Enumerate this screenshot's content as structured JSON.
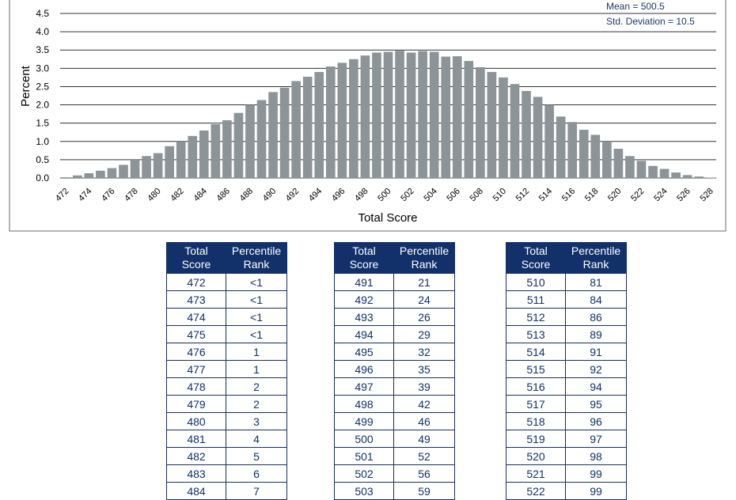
{
  "chart_data": {
    "type": "bar",
    "ylabel": "Percent",
    "xlabel": "Total Score",
    "ylim": [
      0,
      4.5
    ],
    "yticks": [
      "0.0",
      "0.5",
      "1.0",
      "1.5",
      "2.0",
      "2.5",
      "3.0",
      "3.5",
      "4.0",
      "4.5"
    ],
    "xticks": [
      "472",
      "474",
      "476",
      "478",
      "480",
      "482",
      "484",
      "486",
      "488",
      "490",
      "492",
      "494",
      "496",
      "498",
      "500",
      "502",
      "504",
      "506",
      "508",
      "510",
      "512",
      "514",
      "516",
      "518",
      "520",
      "522",
      "524",
      "526",
      "528"
    ],
    "categories": [
      472,
      473,
      474,
      475,
      476,
      477,
      478,
      479,
      480,
      481,
      482,
      483,
      484,
      485,
      486,
      487,
      488,
      489,
      490,
      491,
      492,
      493,
      494,
      495,
      496,
      497,
      498,
      499,
      500,
      501,
      502,
      503,
      504,
      505,
      506,
      507,
      508,
      509,
      510,
      511,
      512,
      513,
      514,
      515,
      516,
      517,
      518,
      519,
      520,
      521,
      522,
      523,
      524,
      525,
      526,
      527,
      528
    ],
    "values": [
      0.02,
      0.07,
      0.13,
      0.2,
      0.27,
      0.36,
      0.5,
      0.6,
      0.68,
      0.87,
      1.0,
      1.15,
      1.3,
      1.47,
      1.58,
      1.78,
      2.0,
      2.13,
      2.35,
      2.47,
      2.65,
      2.77,
      2.9,
      3.05,
      3.15,
      3.25,
      3.35,
      3.43,
      3.45,
      3.48,
      3.43,
      3.47,
      3.45,
      3.32,
      3.33,
      3.2,
      3.03,
      2.9,
      2.75,
      2.57,
      2.38,
      2.22,
      2.0,
      1.68,
      1.53,
      1.32,
      1.18,
      1.0,
      0.8,
      0.6,
      0.47,
      0.33,
      0.25,
      0.15,
      0.08,
      0.04,
      0.01
    ],
    "bar_color": "#8c9497",
    "grid": true,
    "stats": {
      "mean": "Mean = 500.5",
      "sd": "Std. Deviation = 10.5"
    }
  },
  "tables": [
    {
      "header": [
        "Total Score",
        "Percentile Rank"
      ],
      "rows": [
        [
          "472",
          "<1"
        ],
        [
          "473",
          "<1"
        ],
        [
          "474",
          "<1"
        ],
        [
          "475",
          "<1"
        ],
        [
          "476",
          "1"
        ],
        [
          "477",
          "1"
        ],
        [
          "478",
          "2"
        ],
        [
          "479",
          "2"
        ],
        [
          "480",
          "3"
        ],
        [
          "481",
          "4"
        ],
        [
          "482",
          "5"
        ],
        [
          "483",
          "6"
        ],
        [
          "484",
          "7"
        ]
      ]
    },
    {
      "header": [
        "Total Score",
        "Percentile Rank"
      ],
      "rows": [
        [
          "491",
          "21"
        ],
        [
          "492",
          "24"
        ],
        [
          "493",
          "26"
        ],
        [
          "494",
          "29"
        ],
        [
          "495",
          "32"
        ],
        [
          "496",
          "35"
        ],
        [
          "497",
          "39"
        ],
        [
          "498",
          "42"
        ],
        [
          "499",
          "46"
        ],
        [
          "500",
          "49"
        ],
        [
          "501",
          "52"
        ],
        [
          "502",
          "56"
        ],
        [
          "503",
          "59"
        ]
      ]
    },
    {
      "header": [
        "Total Score",
        "Percentile Rank"
      ],
      "rows": [
        [
          "510",
          "81"
        ],
        [
          "511",
          "84"
        ],
        [
          "512",
          "86"
        ],
        [
          "513",
          "89"
        ],
        [
          "514",
          "91"
        ],
        [
          "515",
          "92"
        ],
        [
          "516",
          "94"
        ],
        [
          "517",
          "95"
        ],
        [
          "518",
          "96"
        ],
        [
          "519",
          "97"
        ],
        [
          "520",
          "98"
        ],
        [
          "521",
          "99"
        ],
        [
          "522",
          "99"
        ]
      ]
    }
  ]
}
